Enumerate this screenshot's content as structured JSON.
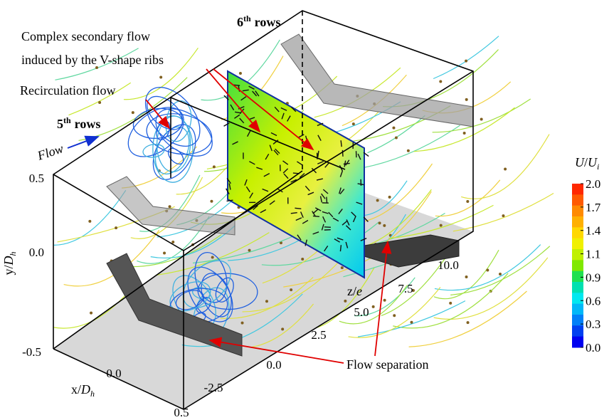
{
  "annotations": {
    "secondary_flow": [
      "Complex secondary flow",
      "induced by the V-shape ribs"
    ],
    "recirculation": "Recirculation flow",
    "separation": "Flow separation",
    "flow": "Flow",
    "row5": {
      "number": "5",
      "suffix": "th",
      "word": "rows"
    },
    "row6": {
      "number": "6",
      "suffix": "th",
      "word": "rows"
    }
  },
  "axes": {
    "y": {
      "label": {
        "var": "y/",
        "sym": "D",
        "sub": "h"
      },
      "ticks": [
        "0.5",
        "0.0",
        "-0.5"
      ]
    },
    "x": {
      "label": {
        "var": "x/",
        "sym": "D",
        "sub": "h"
      },
      "ticks": [
        "0.0",
        "0.5"
      ]
    },
    "z": {
      "label": {
        "var": "z/",
        "sym": "e"
      },
      "ticks": [
        "-2.5",
        "0.0",
        "2.5",
        "5.0",
        "7.5",
        "10.0"
      ]
    }
  },
  "colorbar": {
    "label": {
      "sym": "U",
      "slash": "/",
      "sym2": "U",
      "sub": "i"
    },
    "ticks": [
      "2.0",
      "1.7",
      "1.4",
      "1.1",
      "0.9",
      "0.6",
      "0.3",
      "0.0"
    ]
  }
}
